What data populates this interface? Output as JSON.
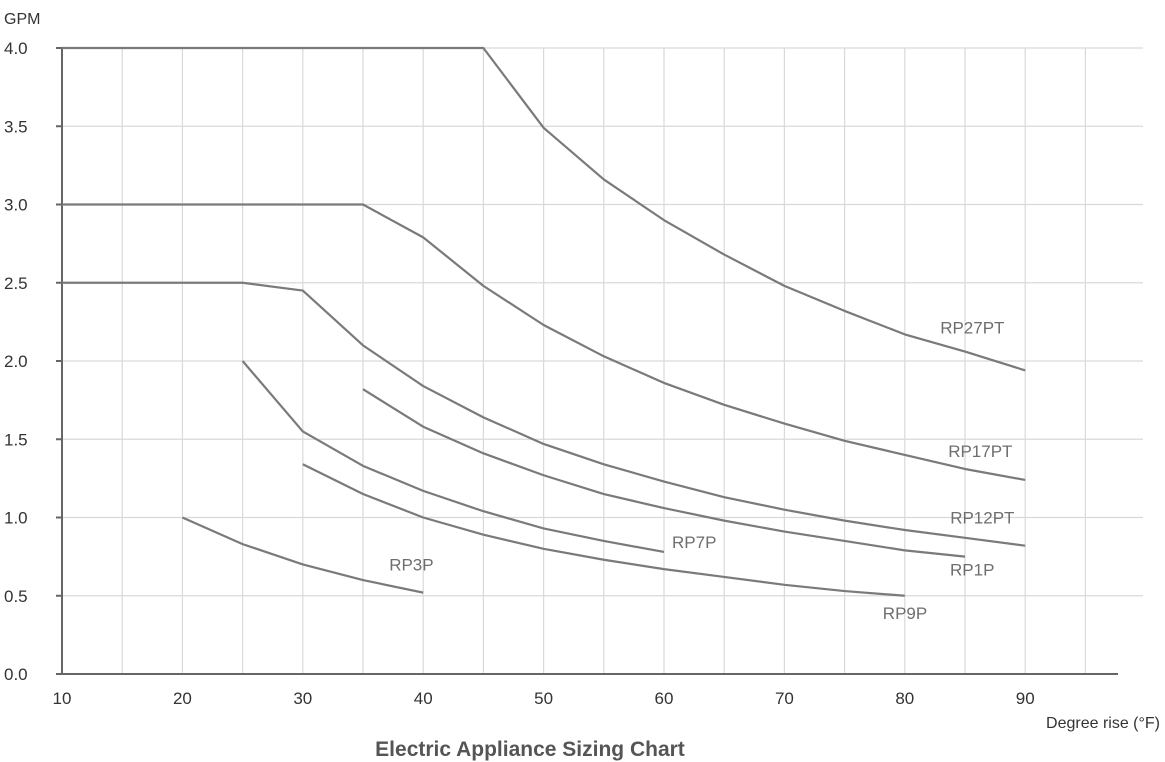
{
  "chart_data": {
    "type": "line",
    "title": "Electric Appliance Sizing Chart",
    "xlabel": "Degree rise (°F)",
    "ylabel": "GPM",
    "xlim": [
      10,
      97
    ],
    "ylim": [
      0,
      4
    ],
    "x_ticks": [
      10,
      20,
      30,
      40,
      50,
      60,
      70,
      80,
      90
    ],
    "x_tick_labels": [
      "10",
      "20",
      "30",
      "40",
      "50",
      "60",
      "70",
      "80",
      "90"
    ],
    "y_ticks": [
      0,
      0.5,
      1,
      1.5,
      2,
      2.5,
      3,
      3.5,
      4
    ],
    "y_tick_labels": [
      "0.0",
      "0.5",
      "1.0",
      "1.5",
      "2.0",
      "2.5",
      "3.0",
      "3.5",
      "4.0"
    ],
    "grid": true,
    "grid_x_step": 5,
    "series": [
      {
        "name": "RP27PT",
        "x": [
          10,
          45,
          50,
          55,
          60,
          65,
          70,
          75,
          80,
          85,
          90
        ],
        "y": [
          4.0,
          4.0,
          3.49,
          3.16,
          2.9,
          2.68,
          2.48,
          2.32,
          2.17,
          2.06,
          1.94
        ]
      },
      {
        "name": "RP17PT",
        "x": [
          10,
          35,
          40,
          45,
          50,
          55,
          60,
          65,
          70,
          75,
          80,
          85,
          90
        ],
        "y": [
          3.0,
          3.0,
          2.79,
          2.48,
          2.23,
          2.03,
          1.86,
          1.72,
          1.6,
          1.49,
          1.4,
          1.31,
          1.24
        ]
      },
      {
        "name": "RP12PT",
        "x": [
          10,
          25,
          30,
          35,
          40,
          45,
          50,
          55,
          60,
          65,
          70,
          75,
          80,
          85,
          90
        ],
        "y": [
          2.5,
          2.5,
          2.45,
          2.1,
          1.84,
          1.64,
          1.47,
          1.34,
          1.23,
          1.13,
          1.05,
          0.98,
          0.92,
          0.87,
          0.82
        ]
      },
      {
        "name": "RP1P",
        "x": [
          35,
          40,
          45,
          50,
          55,
          60,
          65,
          70,
          75,
          80,
          85
        ],
        "y": [
          1.82,
          1.58,
          1.41,
          1.27,
          1.15,
          1.06,
          0.98,
          0.91,
          0.85,
          0.79,
          0.75
        ]
      },
      {
        "name": "RP7P",
        "x": [
          25,
          30,
          35,
          40,
          45,
          50,
          55,
          60
        ],
        "y": [
          2.0,
          1.55,
          1.33,
          1.17,
          1.04,
          0.93,
          0.85,
          0.78
        ]
      },
      {
        "name": "RP9P",
        "x": [
          30,
          35,
          40,
          45,
          50,
          55,
          60,
          65,
          70,
          75,
          80
        ],
        "y": [
          1.34,
          1.15,
          1.0,
          0.89,
          0.8,
          0.73,
          0.67,
          0.62,
          0.57,
          0.53,
          0.5
        ]
      },
      {
        "name": "RP3P",
        "x": [
          20,
          25,
          30,
          35,
          40
        ],
        "y": [
          1.0,
          0.83,
          0.7,
          0.6,
          0.52
        ]
      }
    ]
  }
}
